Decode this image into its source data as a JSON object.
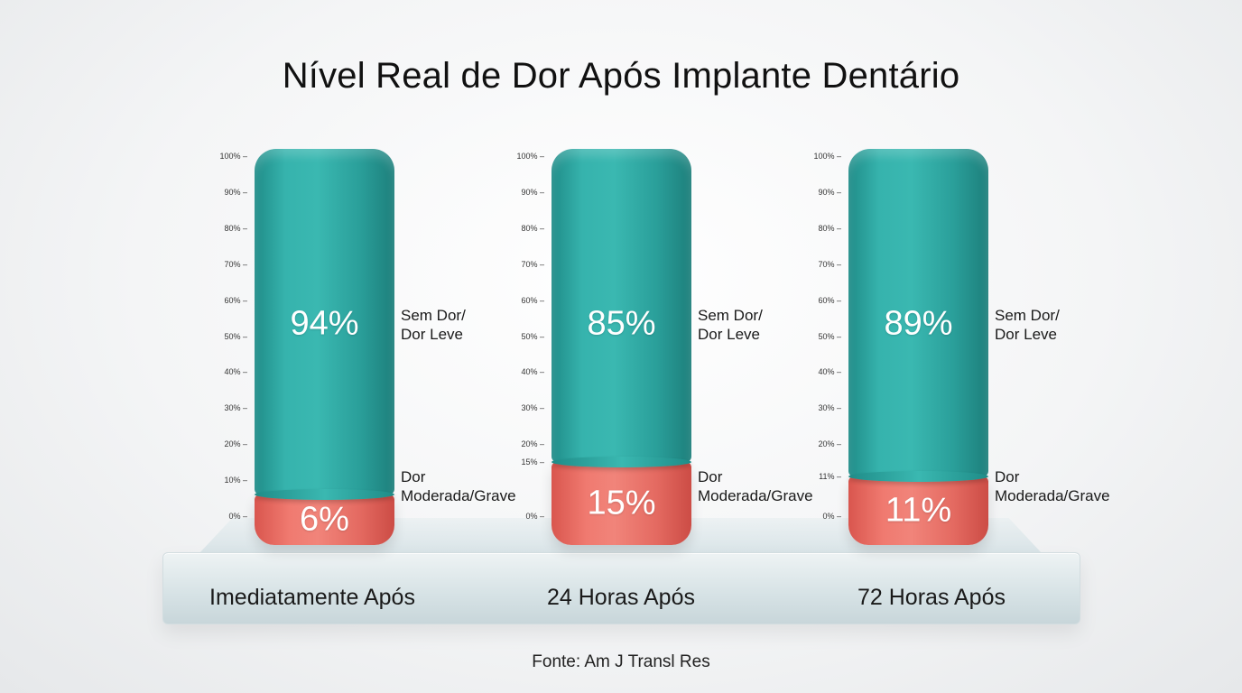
{
  "chart_data": {
    "type": "bar",
    "title": "Nível Real de Dor Após Implante Dentário",
    "source": "Fonte: Am J Transl Res",
    "categories": [
      "Imediatamente Após",
      "24 Horas Após",
      "72 Horas Após"
    ],
    "series": [
      {
        "name": "Sem Dor/ Dor Leve",
        "values": [
          94,
          85,
          89
        ],
        "value_labels": [
          "94%",
          "85%",
          "89%"
        ],
        "color": "#2fa8a2"
      },
      {
        "name": "Dor Moderada/Grave",
        "values": [
          6,
          15,
          11
        ],
        "value_labels": [
          "6%",
          "15%",
          "11%"
        ],
        "color": "#ec746b"
      }
    ],
    "series_labels": [
      {
        "line1": "Sem Dor/",
        "line2": "Dor Leve"
      },
      {
        "line1": "Dor",
        "line2": "Moderada/Grave"
      }
    ],
    "stacked": true,
    "ylim": [
      0,
      100
    ],
    "axes": [
      {
        "ticks": [
          "100%",
          "90%",
          "80%",
          "70%",
          "60%",
          "50%",
          "40%",
          "30%",
          "20%",
          "10%",
          "0%"
        ],
        "tick_values": [
          100,
          90,
          80,
          70,
          60,
          50,
          40,
          30,
          20,
          10,
          0
        ]
      },
      {
        "ticks": [
          "100%",
          "90%",
          "80%",
          "70%",
          "60%",
          "50%",
          "40%",
          "30%",
          "20%",
          "15%",
          "0%"
        ],
        "tick_values": [
          100,
          90,
          80,
          70,
          60,
          50,
          40,
          30,
          20,
          15,
          0
        ]
      },
      {
        "ticks": [
          "100%",
          "90%",
          "80%",
          "70%",
          "60%",
          "50%",
          "40%",
          "30%",
          "20%",
          "11%",
          "0%"
        ],
        "tick_values": [
          100,
          90,
          80,
          70,
          60,
          50,
          40,
          30,
          20,
          11,
          0
        ]
      }
    ]
  }
}
